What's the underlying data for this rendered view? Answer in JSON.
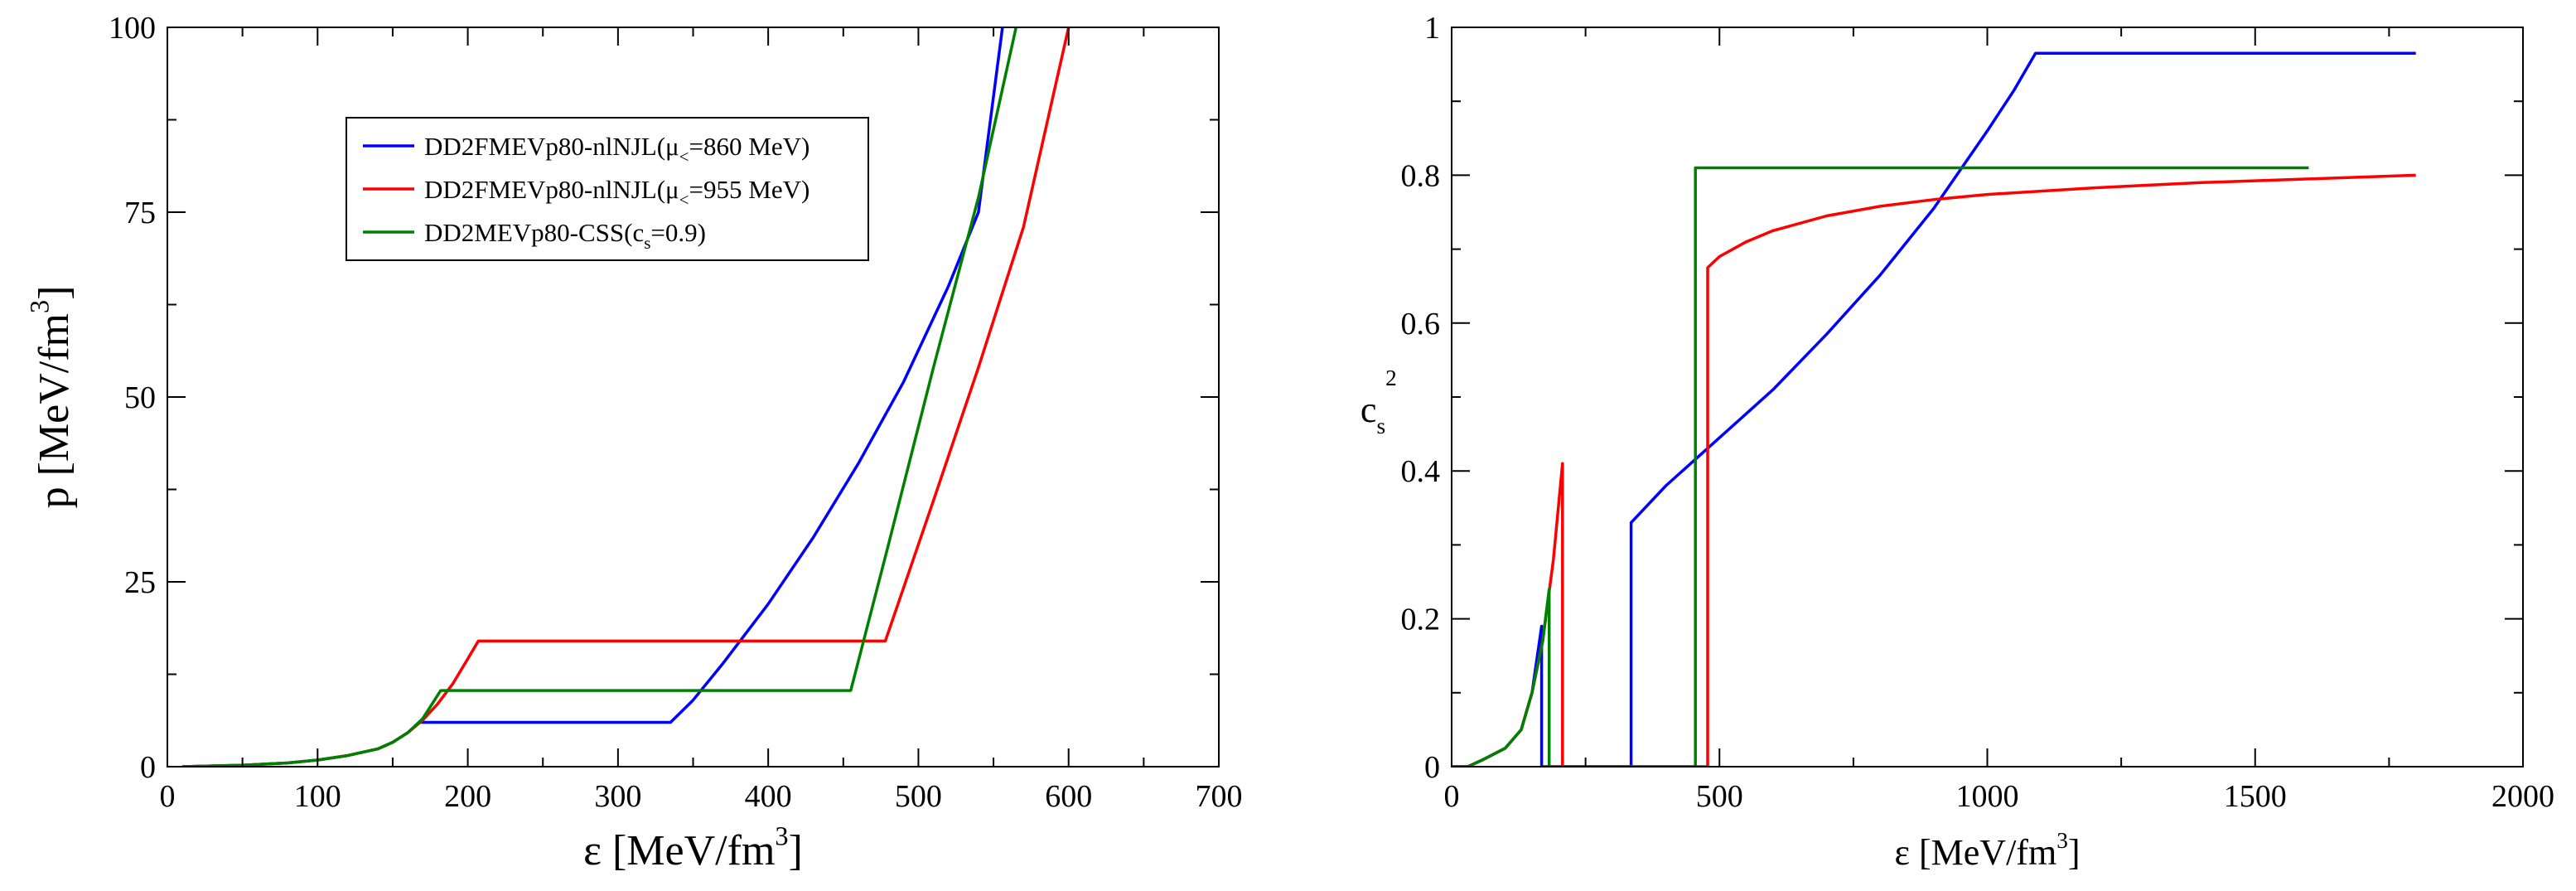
{
  "colors": {
    "blue": "#0000ff",
    "red": "#ff0000",
    "green": "#008000",
    "axis": "#000000"
  },
  "chart_data": [
    {
      "type": "line",
      "xlabel": "ε [MeV/fm",
      "xlabel_sup": "3",
      "xlabel_tail": "]",
      "ylabel": "p [MeV/fm",
      "ylabel_sup": "3",
      "ylabel_tail": "]",
      "xlim": [
        0,
        700
      ],
      "ylim": [
        0,
        100
      ],
      "xticks": [
        0,
        100,
        200,
        300,
        400,
        500,
        600,
        700
      ],
      "yticks": [
        0,
        25,
        50,
        75,
        100
      ],
      "legend": {
        "placement": "upper-left-inside",
        "entries": [
          {
            "color": "blue",
            "text_a": "DD2FMEVp80-nlNJL(μ",
            "sub": "<",
            "text_b": "=860 MeV)"
          },
          {
            "color": "red",
            "text_a": "DD2FMEVp80-nlNJL(μ",
            "sub": "<",
            "text_b": "=955 MeV)"
          },
          {
            "color": "green",
            "text_a": "DD2MEVp80-CSS(c",
            "sub": "s",
            "text_b": "=0.9)"
          }
        ]
      },
      "series": [
        {
          "name": "DD2FMEVp80-nlNJL(μ<=860 MeV)",
          "color": "blue",
          "x": [
            10,
            50,
            80,
            100,
            120,
            140,
            150,
            160,
            168,
            335,
            350,
            370,
            400,
            430,
            460,
            490,
            520,
            540,
            556
          ],
          "y": [
            0,
            0.2,
            0.5,
            0.9,
            1.5,
            2.4,
            3.3,
            4.6,
            6,
            6,
            9,
            14,
            22,
            31,
            41,
            52,
            65,
            75,
            100
          ]
        },
        {
          "name": "DD2FMEVp80-nlNJL(μ<=955 MeV)",
          "color": "red",
          "x": [
            10,
            50,
            80,
            100,
            120,
            140,
            150,
            160,
            170,
            180,
            190,
            200,
            207,
            478,
            510,
            540,
            570,
            600
          ],
          "y": [
            0,
            0.2,
            0.5,
            0.9,
            1.5,
            2.4,
            3.3,
            4.6,
            6.3,
            8.5,
            11.2,
            14.6,
            17,
            17,
            36,
            54,
            73,
            100
          ]
        },
        {
          "name": "DD2MEVp80-CSS(cs=0.9)",
          "color": "green",
          "x": [
            10,
            50,
            80,
            100,
            120,
            140,
            150,
            160,
            170,
            182,
            455,
            480,
            510,
            540,
            565
          ],
          "y": [
            0,
            0.2,
            0.5,
            0.9,
            1.5,
            2.4,
            3.3,
            4.6,
            6.5,
            10.3,
            10.3,
            30,
            54,
            77,
            100
          ]
        }
      ]
    },
    {
      "type": "line",
      "xlabel": "ε [MeV/fm",
      "xlabel_sup": "3",
      "xlabel_tail": "]",
      "ylabel": "c",
      "ylabel_sub": "s",
      "ylabel_sup": "2",
      "xlim": [
        0,
        2000
      ],
      "ylim": [
        0,
        1
      ],
      "xticks": [
        0,
        500,
        1000,
        1500,
        2000
      ],
      "yticks": [
        0,
        0.2,
        0.4,
        0.6,
        0.8,
        1
      ],
      "series": [
        {
          "name": "DD2FMEVp80-nlNJL(μ<=860 MeV)",
          "color": "blue",
          "x": [
            0,
            30,
            60,
            100,
            130,
            150,
            168,
            168,
            335,
            335,
            400,
            500,
            600,
            700,
            800,
            900,
            1000,
            1050,
            1090,
            1800
          ],
          "y": [
            0,
            0,
            0.01,
            0.025,
            0.05,
            0.1,
            0.19,
            0,
            0,
            0.33,
            0.38,
            0.445,
            0.51,
            0.585,
            0.665,
            0.755,
            0.86,
            0.915,
            0.965,
            0.965
          ]
        },
        {
          "name": "DD2FMEVp80-nlNJL(μ<=955 MeV)",
          "color": "red",
          "x": [
            0,
            30,
            60,
            100,
            130,
            150,
            170,
            190,
            207,
            207,
            478,
            478,
            500,
            550,
            600,
            700,
            800,
            900,
            1000,
            1200,
            1400,
            1600,
            1800
          ],
          "y": [
            0,
            0,
            0.01,
            0.025,
            0.05,
            0.1,
            0.17,
            0.28,
            0.41,
            0,
            0,
            0.675,
            0.69,
            0.71,
            0.725,
            0.745,
            0.758,
            0.767,
            0.774,
            0.783,
            0.79,
            0.795,
            0.8
          ]
        },
        {
          "name": "DD2MEVp80-CSS(cs=0.9)",
          "color": "green",
          "x": [
            0,
            30,
            60,
            100,
            130,
            150,
            170,
            182,
            182,
            455,
            455,
            1600
          ],
          "y": [
            0,
            0,
            0.01,
            0.025,
            0.05,
            0.1,
            0.17,
            0.24,
            0,
            0,
            0.81,
            0.81
          ]
        }
      ]
    }
  ]
}
